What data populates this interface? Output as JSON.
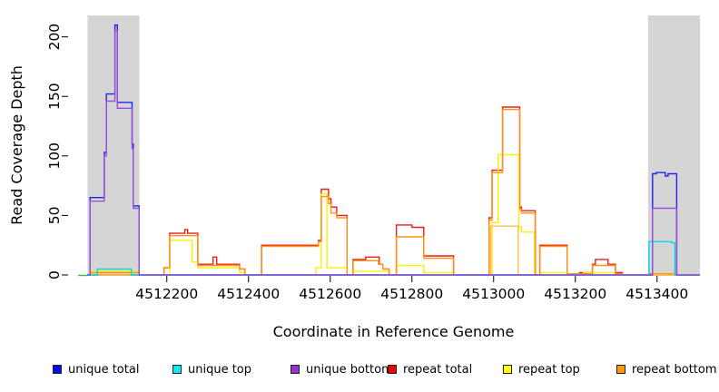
{
  "chart_data": {
    "type": "line",
    "subtype": "step-coverage-plot",
    "title": "",
    "xlabel": "Coordinate in Reference Genome",
    "ylabel": "Read Coverage Depth",
    "xlim": [
      4512005,
      4513505
    ],
    "ylim": [
      0,
      218
    ],
    "xticks": [
      4512200,
      4512400,
      4512600,
      4512800,
      4513000,
      4513200,
      4513400
    ],
    "yticks": [
      0,
      50,
      100,
      150,
      200
    ],
    "grid": false,
    "legend_position": "bottom",
    "shade_color": "#d5d5d5",
    "shaded_regions": [
      {
        "name": "left-repeat-region",
        "from": 4512006,
        "to": 4512133
      },
      {
        "name": "right-repeat-region",
        "from": 4513378,
        "to": 4513505
      }
    ],
    "series": [
      {
        "name": "repeat total",
        "color": "#ec1c1c",
        "in_legend": true,
        "steps": [
          [
            4512005,
            0
          ],
          [
            4512193,
            6
          ],
          [
            4512207,
            35
          ],
          [
            4512244,
            38
          ],
          [
            4512251,
            35
          ],
          [
            4512276,
            9
          ],
          [
            4512313,
            15
          ],
          [
            4512322,
            9
          ],
          [
            4512378,
            5
          ],
          [
            4512391,
            0
          ],
          [
            4512432,
            25
          ],
          [
            4512571,
            29
          ],
          [
            4512578,
            72
          ],
          [
            4512596,
            64
          ],
          [
            4512602,
            57
          ],
          [
            4512616,
            50
          ],
          [
            4512641,
            0
          ],
          [
            4512656,
            13
          ],
          [
            4512687,
            15
          ],
          [
            4512720,
            9
          ],
          [
            4512729,
            5
          ],
          [
            4512744,
            0
          ],
          [
            4512762,
            42
          ],
          [
            4512800,
            40
          ],
          [
            4512829,
            16
          ],
          [
            4512902,
            0
          ],
          [
            4512989,
            48
          ],
          [
            4512996,
            88
          ],
          [
            4513022,
            141
          ],
          [
            4513064,
            57
          ],
          [
            4513068,
            54
          ],
          [
            4513102,
            0
          ],
          [
            4513113,
            25
          ],
          [
            4513180,
            0
          ],
          [
            4513210,
            2
          ],
          [
            4513242,
            9
          ],
          [
            4513249,
            13
          ],
          [
            4513280,
            9
          ],
          [
            4513298,
            2
          ],
          [
            4513315,
            0
          ]
        ]
      },
      {
        "name": "repeat top",
        "color": "#fdef00",
        "in_legend": true,
        "steps": [
          [
            4512005,
            0
          ],
          [
            4512014,
            3
          ],
          [
            4512130,
            0
          ],
          [
            4512207,
            29
          ],
          [
            4512262,
            11
          ],
          [
            4512276,
            6
          ],
          [
            4512378,
            2
          ],
          [
            4512391,
            0
          ],
          [
            4512565,
            6
          ],
          [
            4512578,
            68
          ],
          [
            4512592,
            6
          ],
          [
            4512641,
            0
          ],
          [
            4512656,
            3
          ],
          [
            4512744,
            0
          ],
          [
            4512762,
            8
          ],
          [
            4512829,
            2
          ],
          [
            4512902,
            0
          ],
          [
            4512996,
            44
          ],
          [
            4513011,
            101
          ],
          [
            4513062,
            40
          ],
          [
            4513068,
            36
          ],
          [
            4513100,
            0
          ],
          [
            4513113,
            2
          ],
          [
            4513180,
            0
          ],
          [
            4513220,
            2
          ],
          [
            4513298,
            0
          ]
        ]
      },
      {
        "name": "repeat bottom",
        "color": "#ff930f",
        "in_legend": true,
        "steps": [
          [
            4512005,
            0
          ],
          [
            4512013,
            2
          ],
          [
            4512131,
            0
          ],
          [
            4512193,
            6
          ],
          [
            4512207,
            33
          ],
          [
            4512276,
            8
          ],
          [
            4512378,
            5
          ],
          [
            4512391,
            0
          ],
          [
            4512432,
            24
          ],
          [
            4512571,
            28
          ],
          [
            4512578,
            66
          ],
          [
            4512596,
            60
          ],
          [
            4512602,
            52
          ],
          [
            4512616,
            48
          ],
          [
            4512641,
            0
          ],
          [
            4512656,
            12
          ],
          [
            4512718,
            9
          ],
          [
            4512729,
            5
          ],
          [
            4512744,
            0
          ],
          [
            4512762,
            32
          ],
          [
            4512829,
            14
          ],
          [
            4512902,
            0
          ],
          [
            4512989,
            46
          ],
          [
            4512996,
            86
          ],
          [
            4513022,
            139
          ],
          [
            4513064,
            55
          ],
          [
            4513068,
            52
          ],
          [
            4513102,
            0
          ],
          [
            4513113,
            24
          ],
          [
            4513180,
            1
          ],
          [
            4513242,
            8
          ],
          [
            4513298,
            1
          ],
          [
            4513315,
            0
          ],
          [
            4513380,
            1
          ],
          [
            4513448,
            0
          ]
        ]
      },
      {
        "name": "repeat bottom inner",
        "color": "#ffbe55",
        "in_legend": false,
        "steps": [
          [
            4512005,
            0
          ],
          [
            4512993,
            41
          ],
          [
            4513060,
            0
          ]
        ]
      },
      {
        "name": "unique total",
        "color": "#2121f0",
        "in_legend": true,
        "steps": [
          [
            4512005,
            0
          ],
          [
            4512012,
            65
          ],
          [
            4512047,
            103
          ],
          [
            4512052,
            152
          ],
          [
            4512073,
            210
          ],
          [
            4512079,
            145
          ],
          [
            4512115,
            110
          ],
          [
            4512118,
            58
          ],
          [
            4512132,
            0
          ],
          [
            4513389,
            85
          ],
          [
            4513398,
            86
          ],
          [
            4513420,
            83
          ],
          [
            4513427,
            85
          ],
          [
            4513448,
            0
          ]
        ]
      },
      {
        "name": "unique top",
        "color": "#00dcdc",
        "in_legend": true,
        "steps": [
          [
            4512005,
            0
          ],
          [
            4512030,
            5
          ],
          [
            4512113,
            0
          ],
          [
            4513380,
            28
          ],
          [
            4513435,
            27
          ],
          [
            4513444,
            0
          ]
        ]
      },
      {
        "name": "unique bottom",
        "color": "#9a4fd6",
        "in_legend": true,
        "steps": [
          [
            4512005,
            0
          ],
          [
            4512012,
            62
          ],
          [
            4512047,
            100
          ],
          [
            4512052,
            146
          ],
          [
            4512073,
            205
          ],
          [
            4512079,
            140
          ],
          [
            4512115,
            106
          ],
          [
            4512118,
            56
          ],
          [
            4512132,
            0
          ],
          [
            4513389,
            56
          ],
          [
            4513448,
            0
          ]
        ]
      }
    ],
    "legend": [
      {
        "label": "unique total",
        "color": "#0a0aee"
      },
      {
        "label": "unique top",
        "color": "#00eeee"
      },
      {
        "label": "unique bottom",
        "color": "#9932cc"
      },
      {
        "label": "repeat total",
        "color": "#ee0000"
      },
      {
        "label": "repeat top",
        "color": "#ffff00"
      },
      {
        "label": "repeat bottom",
        "color": "#ff9900"
      }
    ]
  },
  "axes": {
    "x_title": "Coordinate in Reference Genome",
    "y_title": "Read Coverage Depth",
    "x_tick_labels": [
      "4512200",
      "4512400",
      "4512600",
      "4512800",
      "4513000",
      "4513200",
      "4513400"
    ],
    "y_tick_labels": [
      "0",
      "50",
      "100",
      "150",
      "200"
    ]
  }
}
